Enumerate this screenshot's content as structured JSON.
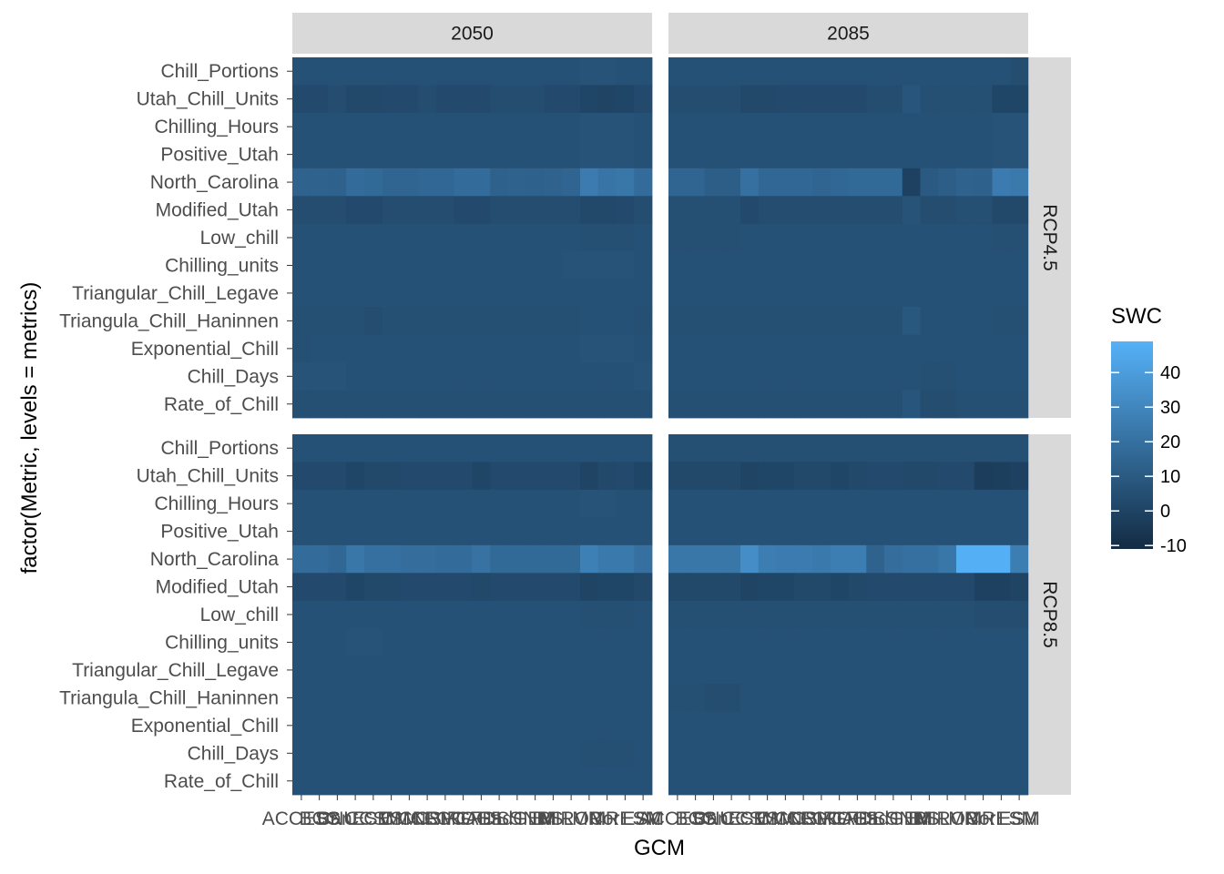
{
  "chart_data": {
    "type": "heatmap",
    "title": "",
    "xlabel": "GCM",
    "ylabel": "factor(Metric, levels = metrics)",
    "legend": {
      "title": "SWC",
      "placement": "right",
      "ticks": [
        -10,
        0,
        10,
        20,
        30,
        40
      ],
      "tick_labels": [
        "-10",
        "0",
        "10",
        "20",
        "30",
        "40"
      ],
      "range": [
        -11,
        49
      ],
      "low_color": "#132B43",
      "high_color": "#56B1F7"
    },
    "facet_columns": [
      "2050",
      "2085"
    ],
    "facet_rows": [
      "RCP4.5",
      "RCP8.5"
    ],
    "metrics": [
      "Chill_Portions",
      "Utah_Chill_Units",
      "Chilling_Hours",
      "Positive_Utah",
      "North_Carolina",
      "Modified_Utah",
      "Low_chill",
      "Chilling_units",
      "Triangular_Chill_Legave",
      "Triangula_Chill_Haninnen",
      "Exponential_Chill",
      "Chill_Days",
      "Rate_of_Chill"
    ],
    "gcm_labels": [
      "ACCESS",
      "BCC",
      "BNU",
      "CanESM",
      "CCSM",
      "CESM",
      "CMCC",
      "CNRM",
      "CSIRO",
      "FGOALS",
      "GFDL",
      "GISS",
      "HadGEM",
      "INM",
      "IPSL",
      "MIROC",
      "MPI",
      "MRI",
      "NorESM",
      "ESM"
    ],
    "panels": [
      {
        "facet_col": "2050",
        "facet_row": "RCP4.5",
        "values": [
          [
            6,
            6,
            6,
            6,
            6,
            6,
            6,
            6,
            6,
            6,
            6,
            6,
            6,
            6,
            6,
            6,
            7,
            7,
            6,
            6
          ],
          [
            3,
            3,
            4,
            2,
            2,
            3,
            3,
            4,
            3,
            3,
            3,
            4,
            4,
            4,
            3,
            3,
            1,
            0,
            1,
            3
          ],
          [
            6,
            6,
            6,
            6,
            6,
            6,
            6,
            6,
            6,
            6,
            6,
            6,
            6,
            6,
            6,
            6,
            7,
            7,
            7,
            6
          ],
          [
            6,
            6,
            6,
            6,
            6,
            6,
            6,
            6,
            6,
            6,
            6,
            6,
            6,
            6,
            6,
            6,
            7,
            7,
            7,
            6
          ],
          [
            14,
            14,
            13,
            18,
            17,
            15,
            15,
            16,
            16,
            18,
            18,
            13,
            14,
            13,
            14,
            15,
            25,
            22,
            23,
            18
          ],
          [
            4,
            4,
            4,
            3,
            3,
            4,
            4,
            4,
            4,
            3,
            3,
            4,
            4,
            4,
            4,
            4,
            2,
            2,
            3,
            4
          ],
          [
            6,
            6,
            6,
            6,
            6,
            6,
            6,
            6,
            6,
            6,
            6,
            6,
            6,
            6,
            6,
            6,
            5,
            5,
            5,
            6
          ],
          [
            6,
            6,
            6,
            6,
            6,
            6,
            6,
            6,
            6,
            6,
            6,
            6,
            6,
            6,
            6,
            7,
            7,
            7,
            7,
            6
          ],
          [
            6,
            6,
            6,
            6,
            6,
            6,
            6,
            6,
            6,
            6,
            6,
            6,
            6,
            6,
            6,
            6,
            6,
            6,
            6,
            6
          ],
          [
            5,
            5,
            5,
            5,
            4,
            5,
            5,
            5,
            5,
            5,
            5,
            5,
            5,
            5,
            5,
            5,
            6,
            6,
            6,
            5
          ],
          [
            5,
            6,
            6,
            6,
            6,
            6,
            6,
            6,
            6,
            6,
            6,
            6,
            6,
            6,
            6,
            6,
            7,
            7,
            7,
            6
          ],
          [
            7,
            7,
            7,
            6,
            6,
            6,
            6,
            6,
            6,
            6,
            6,
            6,
            6,
            6,
            6,
            6,
            6,
            6,
            6,
            7
          ],
          [
            5,
            5,
            5,
            5,
            5,
            5,
            5,
            5,
            5,
            5,
            5,
            5,
            5,
            5,
            5,
            5,
            5,
            5,
            5,
            5
          ]
        ]
      },
      {
        "facet_col": "2085",
        "facet_row": "RCP4.5",
        "values": [
          [
            6,
            6,
            6,
            6,
            6,
            6,
            6,
            6,
            6,
            6,
            6,
            6,
            6,
            6,
            6,
            6,
            6,
            6,
            6,
            4
          ],
          [
            4,
            4,
            4,
            4,
            2,
            2,
            3,
            3,
            3,
            3,
            3,
            4,
            4,
            8,
            5,
            5,
            5,
            5,
            1,
            1
          ],
          [
            6,
            6,
            6,
            6,
            6,
            6,
            6,
            6,
            6,
            6,
            6,
            6,
            6,
            6,
            6,
            6,
            6,
            6,
            7,
            7
          ],
          [
            6,
            6,
            6,
            6,
            6,
            6,
            6,
            6,
            6,
            6,
            6,
            6,
            6,
            6,
            6,
            6,
            6,
            6,
            7,
            7
          ],
          [
            15,
            15,
            12,
            12,
            20,
            16,
            16,
            16,
            15,
            16,
            17,
            17,
            17,
            -1,
            10,
            12,
            14,
            13,
            25,
            24
          ],
          [
            5,
            5,
            5,
            5,
            3,
            4,
            4,
            4,
            4,
            4,
            4,
            4,
            4,
            7,
            4,
            4,
            5,
            5,
            2,
            2
          ],
          [
            5,
            5,
            5,
            5,
            6,
            6,
            6,
            6,
            6,
            6,
            6,
            6,
            6,
            6,
            6,
            6,
            6,
            6,
            5,
            5
          ],
          [
            6,
            6,
            6,
            6,
            6,
            6,
            6,
            6,
            6,
            6,
            6,
            6,
            6,
            6,
            6,
            6,
            6,
            6,
            6,
            6
          ],
          [
            6,
            6,
            6,
            6,
            6,
            6,
            6,
            6,
            6,
            6,
            6,
            6,
            6,
            6,
            6,
            6,
            6,
            6,
            6,
            6
          ],
          [
            5,
            5,
            5,
            5,
            5,
            5,
            5,
            5,
            5,
            5,
            5,
            5,
            5,
            9,
            6,
            6,
            6,
            6,
            5,
            5
          ],
          [
            6,
            6,
            6,
            6,
            6,
            6,
            6,
            6,
            6,
            6,
            6,
            6,
            6,
            6,
            6,
            6,
            6,
            6,
            6,
            6
          ],
          [
            6,
            6,
            6,
            6,
            6,
            6,
            6,
            6,
            6,
            6,
            6,
            6,
            6,
            6,
            5,
            5,
            6,
            6,
            6,
            6
          ],
          [
            5,
            5,
            5,
            5,
            5,
            5,
            5,
            5,
            5,
            5,
            5,
            5,
            5,
            8,
            4,
            4,
            5,
            5,
            5,
            5
          ]
        ]
      },
      {
        "facet_col": "2050",
        "facet_row": "RCP8.5",
        "values": [
          [
            6,
            6,
            6,
            6,
            6,
            6,
            6,
            6,
            6,
            6,
            6,
            6,
            6,
            6,
            6,
            6,
            6,
            6,
            6,
            6
          ],
          [
            3,
            3,
            3,
            1,
            2,
            2,
            3,
            3,
            3,
            3,
            1,
            3,
            3,
            3,
            3,
            3,
            0,
            2,
            3,
            1
          ],
          [
            6,
            6,
            6,
            6,
            6,
            6,
            6,
            6,
            6,
            6,
            6,
            6,
            6,
            6,
            6,
            6,
            7,
            7,
            6,
            6
          ],
          [
            6,
            6,
            6,
            6,
            6,
            6,
            6,
            6,
            6,
            6,
            6,
            6,
            6,
            6,
            6,
            6,
            6,
            6,
            6,
            6
          ],
          [
            18,
            18,
            16,
            23,
            20,
            20,
            19,
            19,
            18,
            18,
            21,
            17,
            17,
            17,
            17,
            17,
            27,
            24,
            24,
            20
          ],
          [
            3,
            3,
            3,
            1,
            2,
            2,
            3,
            3,
            3,
            3,
            2,
            3,
            3,
            3,
            3,
            3,
            0,
            1,
            1,
            2
          ],
          [
            6,
            6,
            6,
            6,
            6,
            6,
            6,
            6,
            6,
            6,
            6,
            6,
            6,
            6,
            6,
            6,
            5,
            5,
            5,
            6
          ],
          [
            6,
            6,
            6,
            7,
            7,
            6,
            6,
            6,
            6,
            6,
            6,
            6,
            6,
            6,
            6,
            6,
            6,
            6,
            6,
            6
          ],
          [
            6,
            6,
            6,
            6,
            6,
            6,
            6,
            6,
            6,
            6,
            6,
            6,
            6,
            6,
            6,
            6,
            6,
            6,
            6,
            6
          ],
          [
            6,
            6,
            6,
            6,
            6,
            6,
            6,
            6,
            6,
            6,
            6,
            6,
            6,
            6,
            6,
            6,
            6,
            6,
            6,
            6
          ],
          [
            6,
            6,
            6,
            6,
            6,
            6,
            6,
            6,
            6,
            6,
            6,
            6,
            6,
            6,
            6,
            6,
            6,
            6,
            6,
            6
          ],
          [
            6,
            6,
            6,
            6,
            6,
            6,
            6,
            6,
            6,
            6,
            6,
            6,
            6,
            6,
            6,
            6,
            5,
            5,
            5,
            6
          ],
          [
            6,
            6,
            6,
            6,
            6,
            6,
            6,
            6,
            6,
            6,
            6,
            6,
            6,
            6,
            6,
            6,
            6,
            6,
            6,
            6
          ]
        ]
      },
      {
        "facet_col": "2085",
        "facet_row": "RCP8.5",
        "values": [
          [
            5,
            5,
            5,
            5,
            5,
            5,
            5,
            5,
            5,
            5,
            5,
            5,
            5,
            5,
            5,
            5,
            5,
            5,
            5,
            5
          ],
          [
            2,
            2,
            2,
            2,
            0,
            1,
            1,
            2,
            2,
            1,
            2,
            3,
            3,
            2,
            2,
            3,
            3,
            -3,
            -2,
            -1
          ],
          [
            6,
            6,
            6,
            6,
            6,
            6,
            6,
            6,
            6,
            6,
            6,
            6,
            6,
            6,
            6,
            6,
            6,
            6,
            6,
            6
          ],
          [
            6,
            6,
            6,
            6,
            6,
            6,
            6,
            6,
            6,
            6,
            6,
            6,
            6,
            6,
            6,
            6,
            6,
            6,
            6,
            6
          ],
          [
            23,
            23,
            23,
            23,
            33,
            26,
            25,
            25,
            24,
            26,
            26,
            14,
            19,
            20,
            20,
            23,
            48,
            48,
            48,
            26
          ],
          [
            2,
            2,
            2,
            2,
            0,
            1,
            1,
            2,
            2,
            1,
            2,
            3,
            3,
            3,
            3,
            3,
            3,
            -1,
            -1,
            0
          ],
          [
            5,
            5,
            5,
            5,
            5,
            5,
            5,
            5,
            5,
            5,
            5,
            5,
            5,
            5,
            5,
            5,
            5,
            4,
            4,
            4
          ],
          [
            6,
            6,
            6,
            6,
            6,
            6,
            6,
            6,
            6,
            6,
            6,
            6,
            6,
            6,
            6,
            6,
            6,
            6,
            6,
            6
          ],
          [
            6,
            6,
            6,
            6,
            6,
            6,
            6,
            6,
            6,
            6,
            6,
            6,
            6,
            6,
            6,
            6,
            6,
            6,
            6,
            6
          ],
          [
            5,
            5,
            4,
            4,
            6,
            6,
            6,
            6,
            6,
            6,
            6,
            6,
            6,
            6,
            6,
            6,
            6,
            6,
            6,
            6
          ],
          [
            6,
            6,
            6,
            6,
            6,
            6,
            6,
            6,
            6,
            6,
            6,
            6,
            6,
            6,
            6,
            6,
            6,
            6,
            6,
            6
          ],
          [
            6,
            6,
            6,
            6,
            6,
            6,
            6,
            6,
            6,
            6,
            6,
            6,
            6,
            6,
            6,
            6,
            6,
            6,
            6,
            6
          ],
          [
            6,
            6,
            6,
            6,
            6,
            6,
            6,
            6,
            6,
            6,
            6,
            6,
            6,
            6,
            6,
            6,
            6,
            6,
            6,
            6
          ]
        ]
      }
    ]
  }
}
